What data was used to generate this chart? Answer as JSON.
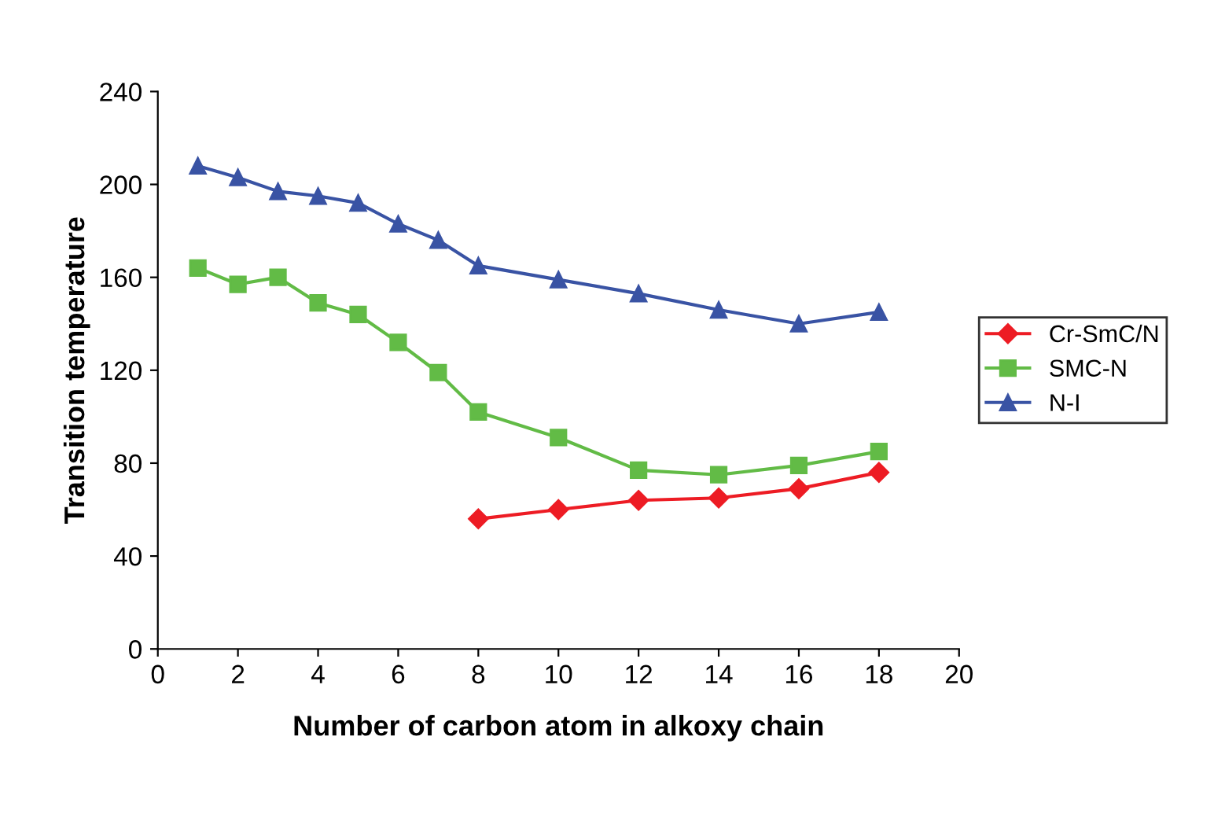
{
  "chart_data": {
    "type": "line",
    "xlabel": "Number of carbon atom in alkoxy chain",
    "ylabel": "Transition temperature",
    "xlim": [
      0,
      20
    ],
    "xticks": [
      0,
      2,
      4,
      6,
      8,
      10,
      12,
      14,
      16,
      18,
      20
    ],
    "ylim": [
      0,
      240
    ],
    "yticks": [
      0,
      40,
      80,
      120,
      160,
      200,
      240
    ],
    "grid": false,
    "legend": "right",
    "line_style": "solid",
    "series": [
      {
        "name": "Cr-SmC/N",
        "color": "#ed1c24",
        "marker": "diamond",
        "x": [
          8,
          10,
          12,
          14,
          16,
          18
        ],
        "values": [
          56,
          60,
          64,
          65,
          69,
          76
        ]
      },
      {
        "name": "SMC-N",
        "color": "#62bb46",
        "marker": "square",
        "x": [
          1,
          2,
          3,
          4,
          5,
          6,
          7,
          8,
          10,
          12,
          14,
          16,
          18
        ],
        "values": [
          164,
          157,
          160,
          149,
          144,
          132,
          119,
          102,
          91,
          77,
          75,
          79,
          85
        ]
      },
      {
        "name": "N-I",
        "color": "#3953a4",
        "marker": "triangle",
        "x": [
          1,
          2,
          3,
          4,
          5,
          6,
          7,
          8,
          10,
          12,
          14,
          16,
          18
        ],
        "values": [
          208,
          203,
          197,
          195,
          192,
          183,
          176,
          165,
          159,
          153,
          146,
          140,
          145
        ]
      }
    ]
  }
}
